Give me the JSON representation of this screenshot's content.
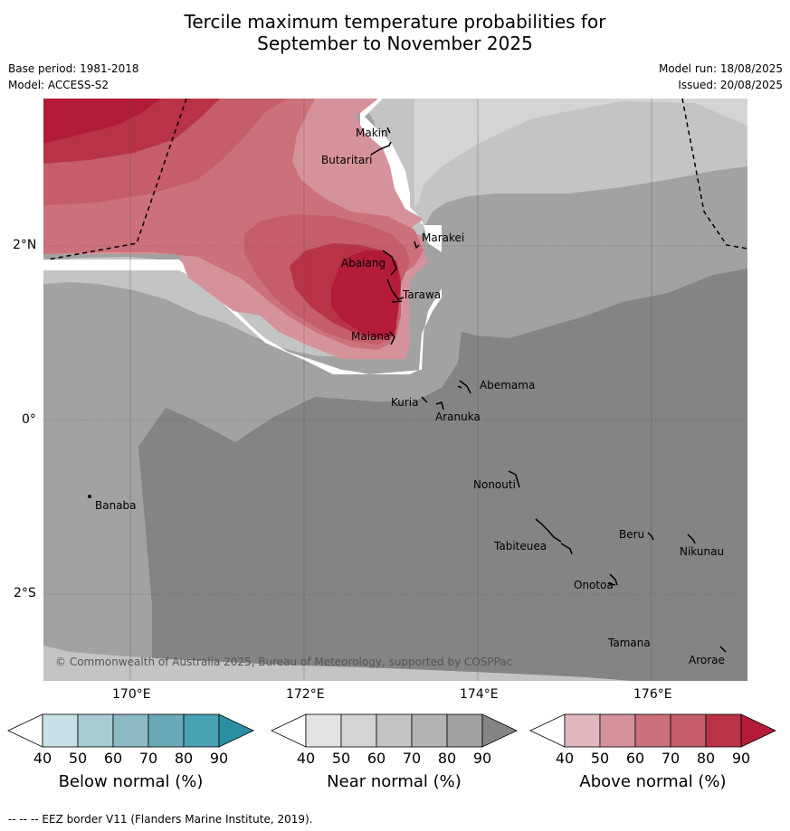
{
  "title_line1": "Tercile maximum temperature probabilities for",
  "title_line2": "September to November 2025",
  "base_period": "Base period: 1981-2018",
  "model": "Model: ACCESS-S2",
  "model_run": "Model run: 18/08/2025",
  "issued": "Issued: 20/08/2025",
  "copyright": "© Commonwealth of Australia 2025, Bureau of Meteorology, supported by COSPPac",
  "footer": "--  --  -- EEZ border V11 (Flanders Marine Institute, 2019).",
  "map": {
    "lat_labels": [
      "2°N",
      "0°",
      "2°S"
    ],
    "lon_labels": [
      "170°E",
      "172°E",
      "174°E",
      "176°E"
    ],
    "places": {
      "makin": "Makin",
      "butaritari": "Butaritari",
      "marakei": "Marakei",
      "abaiang": "Abaiang",
      "tarawa": "Tarawa",
      "maiana": "Maiana",
      "abemama": "Abemama",
      "kuria": "Kuria",
      "aranuka": "Aranuka",
      "nonouti": "Nonouti",
      "banaba": "Banaba",
      "beru": "Beru",
      "nikunau": "Nikunau",
      "tabiteuea": "Tabiteuea",
      "onotoa": "Onotoa",
      "tamana": "Tamana",
      "arorae": "Arorae"
    }
  },
  "colorbars": [
    {
      "label": "Below normal (%)",
      "ticks": [
        "40",
        "50",
        "60",
        "70",
        "80",
        "90"
      ],
      "colors": [
        "#ffffff",
        "#c8e1e8",
        "#a9cbd3",
        "#8cb9c4",
        "#6aa9b7",
        "#47a2b1",
        "#2b8fa2"
      ]
    },
    {
      "label": "Near normal (%)",
      "ticks": [
        "40",
        "50",
        "60",
        "70",
        "80",
        "90"
      ],
      "colors": [
        "#ffffff",
        "#e3e3e3",
        "#d4d4d4",
        "#c4c4c4",
        "#b3b3b3",
        "#a2a2a2",
        "#848484"
      ]
    },
    {
      "label": "Above normal (%)",
      "ticks": [
        "40",
        "50",
        "60",
        "70",
        "80",
        "90"
      ],
      "colors": [
        "#ffffff",
        "#e2b8be",
        "#d6929a",
        "#cc717b",
        "#c55d6a",
        "#b93347",
        "#b31b38"
      ]
    }
  ]
}
